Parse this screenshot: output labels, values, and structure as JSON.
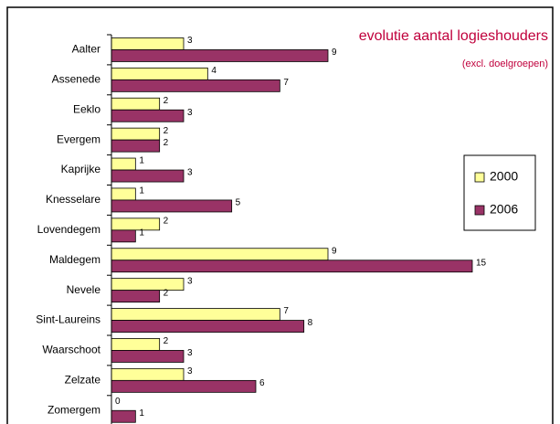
{
  "chart_data": {
    "type": "hbar",
    "title": "evolutie aantal logieshouders",
    "subtitle": "(excl. doelgroepen)",
    "categories": [
      "Aalter",
      "Assenede",
      "Eeklo",
      "Evergem",
      "Kaprijke",
      "Knesselare",
      "Lovendegem",
      "Maldegem",
      "Nevele",
      "Sint-Laureins",
      "Waarschoot",
      "Zelzate",
      "Zomergem"
    ],
    "series": [
      {
        "name": "2000",
        "color": "#ffff99",
        "values": [
          3,
          4,
          2,
          2,
          1,
          1,
          2,
          9,
          3,
          7,
          2,
          3,
          0
        ]
      },
      {
        "name": "2006",
        "color": "#993366",
        "values": [
          9,
          7,
          3,
          2,
          3,
          5,
          1,
          15,
          2,
          8,
          3,
          6,
          1
        ]
      }
    ],
    "xlim": [
      0,
      18
    ],
    "legend": "right"
  }
}
